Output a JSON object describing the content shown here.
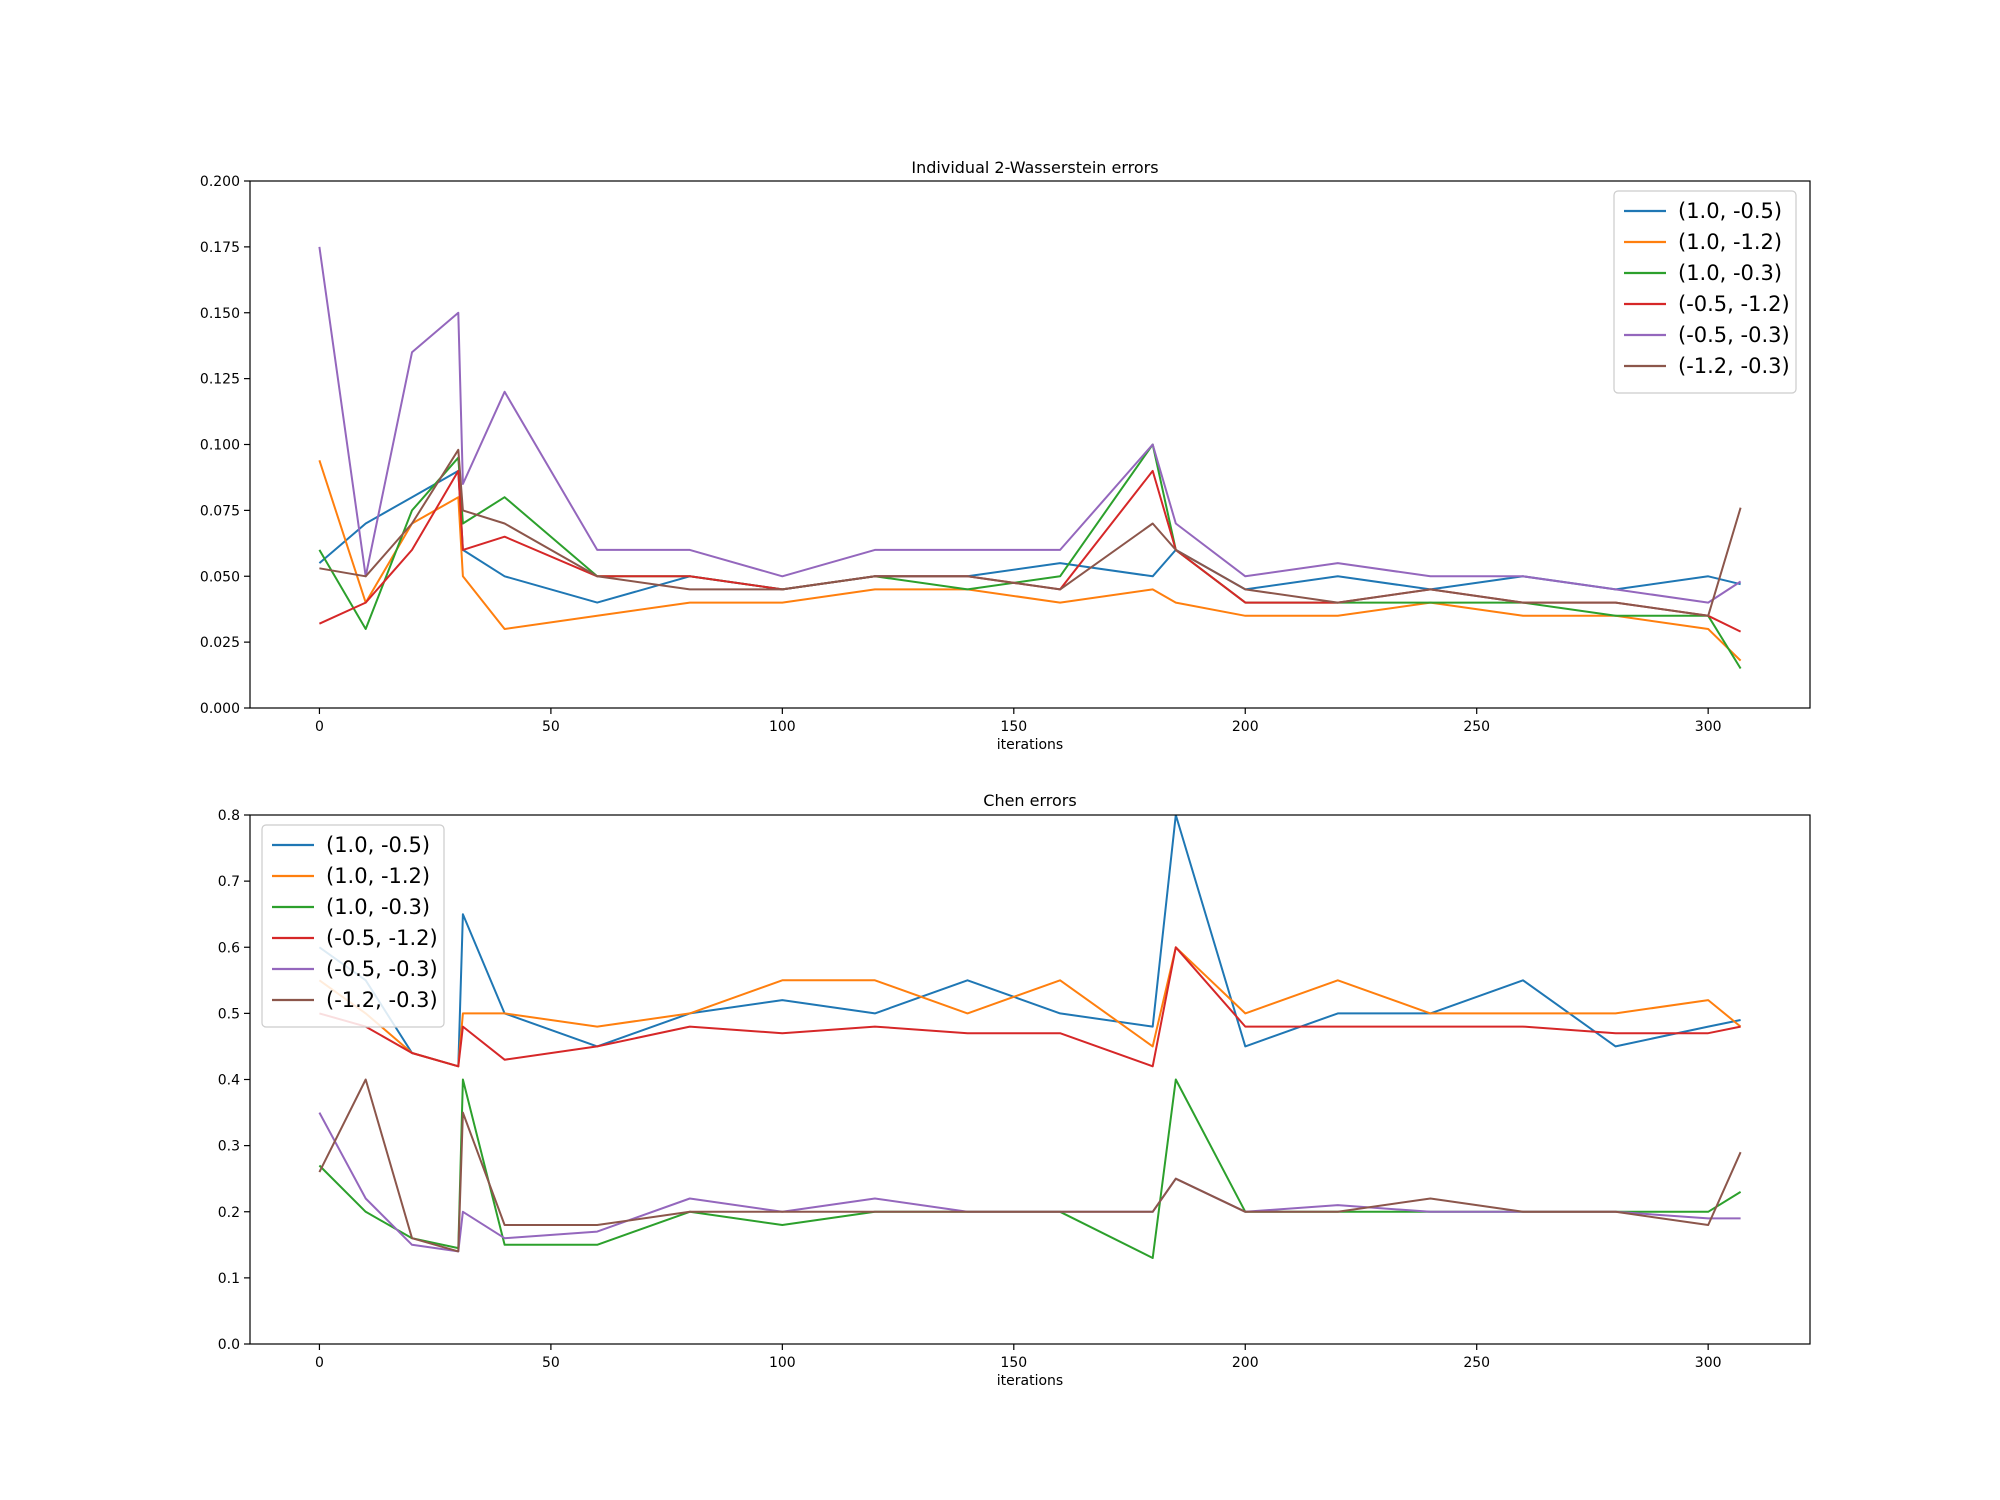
{
  "chart_data": [
    {
      "type": "line",
      "title": "Individual 2-Wasserstein errors",
      "xlabel": "iterations",
      "ylabel": "",
      "xlim": [
        -15,
        322
      ],
      "ylim": [
        0.0,
        0.2
      ],
      "xticks": [
        0,
        50,
        100,
        150,
        200,
        250,
        300
      ],
      "yticks": [
        0.0,
        0.025,
        0.05,
        0.075,
        0.1,
        0.125,
        0.15,
        0.175,
        0.2
      ],
      "ytick_decimals": 3,
      "legend_position": "upper-right",
      "grid": false,
      "x": [
        0,
        10,
        20,
        30,
        31,
        40,
        60,
        80,
        100,
        120,
        140,
        160,
        180,
        185,
        200,
        220,
        240,
        260,
        280,
        300,
        307
      ],
      "series": [
        {
          "name": "(1.0, -0.5)",
          "color": "#1f77b4",
          "values": [
            0.055,
            0.07,
            0.08,
            0.09,
            0.06,
            0.05,
            0.04,
            0.05,
            0.045,
            0.05,
            0.05,
            0.055,
            0.05,
            0.06,
            0.045,
            0.05,
            0.045,
            0.05,
            0.045,
            0.05,
            0.047
          ]
        },
        {
          "name": "(1.0, -1.2)",
          "color": "#ff7f0e",
          "values": [
            0.094,
            0.04,
            0.07,
            0.08,
            0.05,
            0.03,
            0.035,
            0.04,
            0.04,
            0.045,
            0.045,
            0.04,
            0.045,
            0.04,
            0.035,
            0.035,
            0.04,
            0.035,
            0.035,
            0.03,
            0.018
          ]
        },
        {
          "name": "(1.0, -0.3)",
          "color": "#2ca02c",
          "values": [
            0.06,
            0.03,
            0.075,
            0.095,
            0.07,
            0.08,
            0.05,
            0.05,
            0.045,
            0.05,
            0.045,
            0.05,
            0.1,
            0.06,
            0.04,
            0.04,
            0.04,
            0.04,
            0.035,
            0.035,
            0.015
          ]
        },
        {
          "name": "(-0.5, -1.2)",
          "color": "#d62728",
          "values": [
            0.032,
            0.04,
            0.06,
            0.09,
            0.06,
            0.065,
            0.05,
            0.05,
            0.045,
            0.05,
            0.05,
            0.045,
            0.09,
            0.06,
            0.04,
            0.04,
            0.045,
            0.04,
            0.04,
            0.035,
            0.029
          ]
        },
        {
          "name": "(-0.5, -0.3)",
          "color": "#9467bd",
          "values": [
            0.175,
            0.05,
            0.135,
            0.15,
            0.085,
            0.12,
            0.06,
            0.06,
            0.05,
            0.06,
            0.06,
            0.06,
            0.1,
            0.07,
            0.05,
            0.055,
            0.05,
            0.05,
            0.045,
            0.04,
            0.048
          ]
        },
        {
          "name": "(-1.2, -0.3)",
          "color": "#8c564b",
          "values": [
            0.053,
            0.05,
            0.07,
            0.098,
            0.075,
            0.07,
            0.05,
            0.045,
            0.045,
            0.05,
            0.05,
            0.045,
            0.07,
            0.06,
            0.045,
            0.04,
            0.045,
            0.04,
            0.04,
            0.035,
            0.076
          ]
        }
      ]
    },
    {
      "type": "line",
      "title": "Chen errors",
      "xlabel": "iterations",
      "ylabel": "",
      "xlim": [
        -15,
        322
      ],
      "ylim": [
        0.0,
        0.8
      ],
      "xticks": [
        0,
        50,
        100,
        150,
        200,
        250,
        300
      ],
      "yticks": [
        0.0,
        0.1,
        0.2,
        0.3,
        0.4,
        0.5,
        0.6,
        0.7,
        0.8
      ],
      "ytick_decimals": 1,
      "legend_position": "upper-left",
      "grid": false,
      "x": [
        0,
        10,
        20,
        30,
        31,
        40,
        60,
        80,
        100,
        120,
        140,
        160,
        180,
        185,
        200,
        220,
        240,
        260,
        280,
        300,
        307
      ],
      "series": [
        {
          "name": "(1.0, -0.5)",
          "color": "#1f77b4",
          "values": [
            0.6,
            0.55,
            0.44,
            0.42,
            0.65,
            0.5,
            0.45,
            0.5,
            0.52,
            0.5,
            0.55,
            0.5,
            0.48,
            0.8,
            0.45,
            0.5,
            0.5,
            0.55,
            0.45,
            0.48,
            0.49
          ]
        },
        {
          "name": "(1.0, -1.2)",
          "color": "#ff7f0e",
          "values": [
            0.55,
            0.5,
            0.44,
            0.42,
            0.5,
            0.5,
            0.48,
            0.5,
            0.55,
            0.55,
            0.5,
            0.55,
            0.45,
            0.6,
            0.5,
            0.55,
            0.5,
            0.5,
            0.5,
            0.52,
            0.48
          ]
        },
        {
          "name": "(1.0, -0.3)",
          "color": "#2ca02c",
          "values": [
            0.27,
            0.2,
            0.16,
            0.145,
            0.4,
            0.15,
            0.15,
            0.2,
            0.18,
            0.2,
            0.2,
            0.2,
            0.13,
            0.4,
            0.2,
            0.2,
            0.2,
            0.2,
            0.2,
            0.2,
            0.23
          ]
        },
        {
          "name": "(-0.5, -1.2)",
          "color": "#d62728",
          "values": [
            0.5,
            0.48,
            0.44,
            0.42,
            0.48,
            0.43,
            0.45,
            0.48,
            0.47,
            0.48,
            0.47,
            0.47,
            0.42,
            0.6,
            0.48,
            0.48,
            0.48,
            0.48,
            0.47,
            0.47,
            0.48
          ]
        },
        {
          "name": "(-0.5, -0.3)",
          "color": "#9467bd",
          "values": [
            0.35,
            0.22,
            0.15,
            0.14,
            0.2,
            0.16,
            0.17,
            0.22,
            0.2,
            0.22,
            0.2,
            0.2,
            0.2,
            0.25,
            0.2,
            0.21,
            0.2,
            0.2,
            0.2,
            0.19,
            0.19
          ]
        },
        {
          "name": "(-1.2, -0.3)",
          "color": "#8c564b",
          "values": [
            0.26,
            0.4,
            0.16,
            0.14,
            0.35,
            0.18,
            0.18,
            0.2,
            0.2,
            0.2,
            0.2,
            0.2,
            0.2,
            0.25,
            0.2,
            0.2,
            0.22,
            0.2,
            0.2,
            0.18,
            0.29
          ]
        }
      ]
    }
  ]
}
